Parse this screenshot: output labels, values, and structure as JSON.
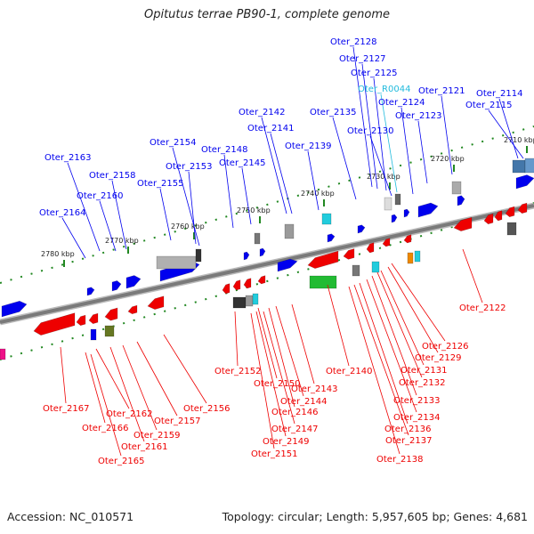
{
  "title": "Opitutus terrae PB90-1, complete genome",
  "footer": {
    "accession": "Accession: NC_010571",
    "summary": "Topology: circular; Length: 5,957,605 bp; Genes: 4,681"
  },
  "colors": {
    "forward_strand": "#0000ee",
    "reverse_strand": "#ee0000",
    "rna": "#00bbcc",
    "backbone": "#7a7a7a",
    "tick": "#228822"
  },
  "ticks": [
    "2710 kbp",
    "2720 kbp",
    "2730 kbp",
    "2740 kbp",
    "2750 kbp",
    "2760 kbp",
    "2770 kbp",
    "2780 kbp"
  ],
  "gene_labels_top": [
    "Oter_2128",
    "Oter_2127",
    "Oter_2125",
    "Oter_R0044",
    "Oter_2121",
    "Oter_2114",
    "Oter_2124",
    "Oter_2115",
    "Oter_2142",
    "Oter_2135",
    "Oter_2123",
    "Oter_2141",
    "Oter_2130",
    "Oter_2154",
    "Oter_2139",
    "Oter_2148",
    "Oter_2163",
    "Oter_2153",
    "Oter_2145",
    "Oter_2158",
    "Oter_2155",
    "Oter_2160",
    "Oter_2164"
  ],
  "gene_labels_bottom": [
    "Oter_2122",
    "Oter_2126",
    "Oter_2129",
    "Oter_2131",
    "Oter_2132",
    "Oter_2140",
    "Oter_2152",
    "Oter_2150",
    "Oter_2143",
    "Oter_2133",
    "Oter_2144",
    "Oter_2146",
    "Oter_2167",
    "Oter_2156",
    "Oter_2162",
    "Oter_2134",
    "Oter_2157",
    "Oter_2147",
    "Oter_2166",
    "Oter_2136",
    "Oter_2159",
    "Oter_2149",
    "Oter_2137",
    "Oter_2161",
    "Oter_2151",
    "Oter_2138",
    "Oter_2165"
  ]
}
